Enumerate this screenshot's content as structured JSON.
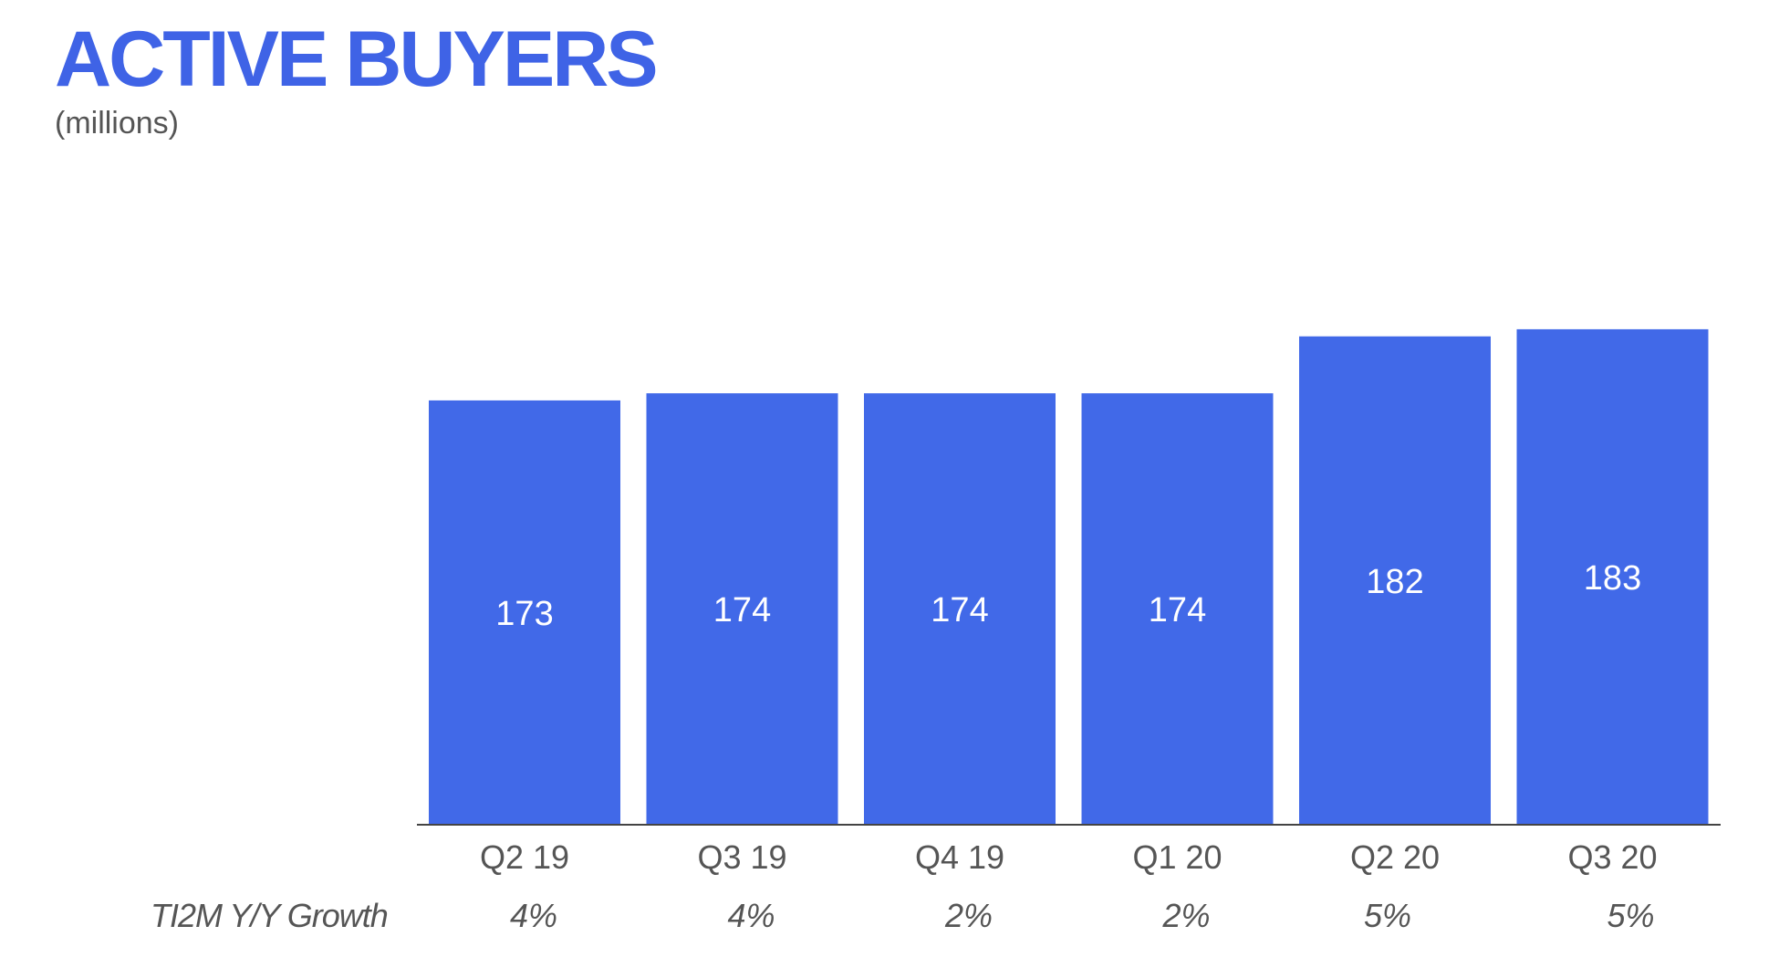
{
  "header": {
    "title": "ACTIVE BUYERS",
    "subtitle": "(millions)"
  },
  "colors": {
    "bar": "#4169E8",
    "title": "#3F63E6",
    "text_gray": "#555555",
    "axis": "#444444"
  },
  "growth_row": {
    "title": "TI2M Y/Y Growth",
    "values": [
      "4%",
      "4%",
      "2%",
      "2%",
      "5%",
      "5%"
    ]
  },
  "chart_data": {
    "type": "bar",
    "categories": [
      "Q2 19",
      "Q3 19",
      "Q4 19",
      "Q1 20",
      "Q2 20",
      "Q3 20"
    ],
    "values": [
      173,
      174,
      174,
      174,
      182,
      183
    ],
    "data_labels": [
      "173",
      "174",
      "174",
      "174",
      "182",
      "183"
    ],
    "title": "ACTIVE BUYERS",
    "subtitle": "(millions)",
    "xlabel": "",
    "ylabel": "",
    "ylim": [
      0,
      190
    ],
    "grid": false,
    "legend": "none"
  }
}
